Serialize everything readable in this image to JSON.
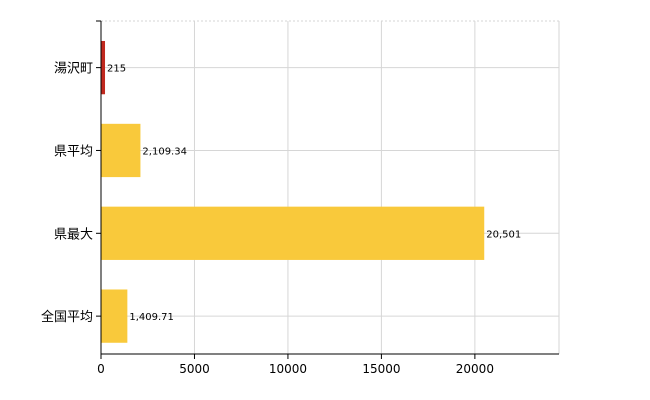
{
  "chart_data": {
    "type": "bar",
    "orientation": "horizontal",
    "categories": [
      "湯沢町",
      "県平均",
      "県最大",
      "全国平均"
    ],
    "values": [
      215,
      2109.34,
      20501,
      1409.71
    ],
    "value_labels": [
      "215",
      "2,109.34",
      "20,501",
      "1,409.71"
    ],
    "colors": [
      "#c0281e",
      "#f9c93b",
      "#f9c93b",
      "#f9c93b"
    ],
    "xlim": [
      0,
      24500
    ],
    "xticks": [
      0,
      5000,
      10000,
      15000,
      20000
    ],
    "xtick_labels": [
      "0",
      "5000",
      "10000",
      "15000",
      "20000"
    ],
    "grid": true,
    "title": "",
    "xlabel": "",
    "ylabel": ""
  }
}
